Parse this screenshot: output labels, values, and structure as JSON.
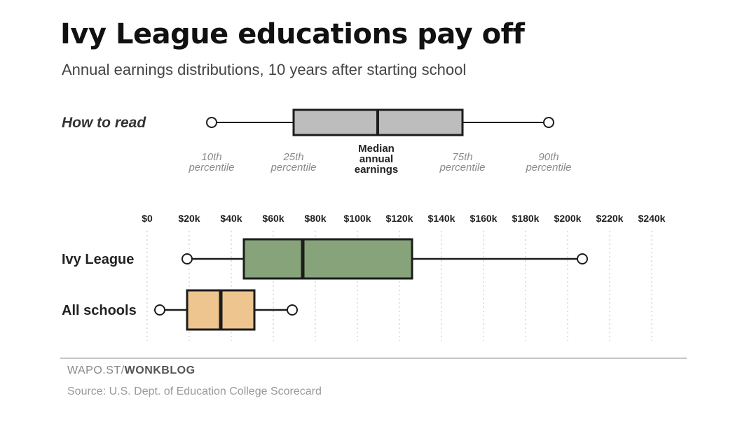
{
  "header": {
    "title": "Ivy League educations pay off",
    "subtitle": "Annual earnings distributions, 10 years after starting school"
  },
  "how_to_read": {
    "label": "How to read",
    "labels": {
      "p10": [
        "10th",
        "percentile"
      ],
      "p25": [
        "25th",
        "percentile"
      ],
      "median": [
        "Median",
        "annual",
        "earnings"
      ],
      "p75": [
        "75th",
        "percentile"
      ],
      "p90": [
        "90th",
        "percentile"
      ]
    }
  },
  "chart_data": {
    "type": "box",
    "title": "Ivy League educations pay off",
    "subtitle": "Annual earnings distributions, 10 years after starting school",
    "xlim": [
      0,
      240000
    ],
    "x_ticks": [
      0,
      20000,
      40000,
      60000,
      80000,
      100000,
      120000,
      140000,
      160000,
      180000,
      200000,
      220000,
      240000
    ],
    "x_tick_labels": [
      "$0",
      "$20k",
      "$40k",
      "$60k",
      "$80k",
      "$100k",
      "$120k",
      "$140k",
      "$160k",
      "$180k",
      "$200k",
      "$220k",
      "$240k"
    ],
    "grid": true,
    "series": [
      {
        "name": "Ivy League",
        "p10": 19000,
        "p25": 46000,
        "median": 74000,
        "p75": 126000,
        "p90": 207000,
        "color": "#86a37a"
      },
      {
        "name": "All schools",
        "p10": 6000,
        "p25": 19000,
        "median": 35000,
        "p75": 51000,
        "p90": 69000,
        "color": "#eec48f"
      }
    ]
  },
  "footer": {
    "credit_prefix": "WAPO.ST/",
    "credit_bold": "WONKBLOG",
    "source": "Source: U.S. Dept. of Education College Scorecard"
  },
  "colors": {
    "guide_box": "#bdbdbd",
    "outline": "#1c1c1c",
    "grid": "#cfcfcf"
  }
}
